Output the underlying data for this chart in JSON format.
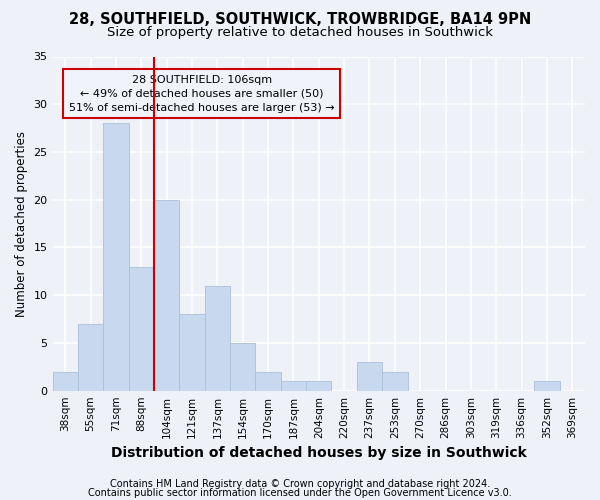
{
  "title_line1": "28, SOUTHFIELD, SOUTHWICK, TROWBRIDGE, BA14 9PN",
  "title_line2": "Size of property relative to detached houses in Southwick",
  "xlabel": "Distribution of detached houses by size in Southwick",
  "ylabel": "Number of detached properties",
  "categories": [
    "38sqm",
    "55sqm",
    "71sqm",
    "88sqm",
    "104sqm",
    "121sqm",
    "137sqm",
    "154sqm",
    "170sqm",
    "187sqm",
    "204sqm",
    "220sqm",
    "237sqm",
    "253sqm",
    "270sqm",
    "286sqm",
    "303sqm",
    "319sqm",
    "336sqm",
    "352sqm",
    "369sqm"
  ],
  "values": [
    2,
    7,
    28,
    13,
    20,
    8,
    11,
    5,
    2,
    1,
    1,
    0,
    3,
    2,
    0,
    0,
    0,
    0,
    0,
    1,
    0
  ],
  "bar_color": "#c8d8ee",
  "bar_edgecolor": "#aabfd8",
  "vline_index": 4,
  "vline_color": "#cc0000",
  "annotation_text": "28 SOUTHFIELD: 106sqm\n← 49% of detached houses are smaller (50)\n51% of semi-detached houses are larger (53) →",
  "annotation_bbox_edgecolor": "#cc0000",
  "annotation_bbox_facecolor": "#f0f4fa",
  "ylim": [
    0,
    35
  ],
  "yticks": [
    0,
    5,
    10,
    15,
    20,
    25,
    30,
    35
  ],
  "footer_line1": "Contains HM Land Registry data © Crown copyright and database right 2024.",
  "footer_line2": "Contains public sector information licensed under the Open Government Licence v3.0.",
  "background_color": "#eef2f8",
  "grid_color": "#ffffff",
  "title_fontsize": 10.5,
  "subtitle_fontsize": 9.5,
  "xlabel_fontsize": 10,
  "ylabel_fontsize": 8.5,
  "tick_fontsize": 7.5,
  "annotation_fontsize": 8,
  "footer_fontsize": 7
}
